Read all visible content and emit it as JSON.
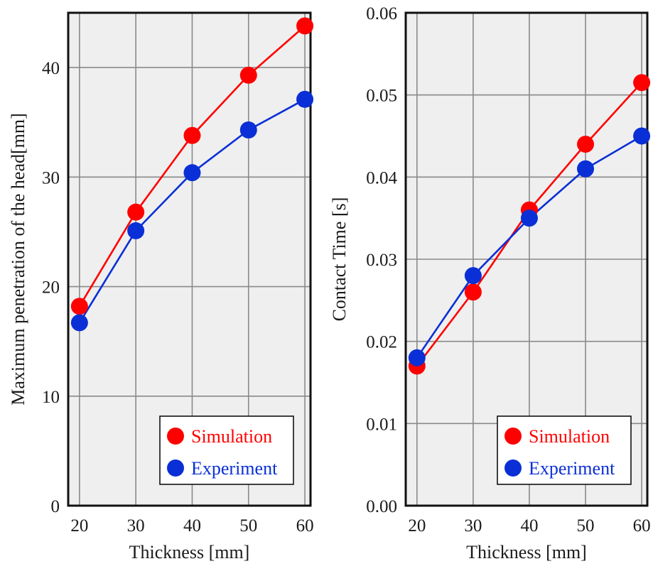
{
  "chart_data": [
    {
      "type": "line",
      "title": "",
      "xlabel": "Thickness [mm]",
      "ylabel": "Maximum penetration of the head[mm]",
      "x": [
        20,
        30,
        40,
        50,
        60
      ],
      "xlim": [
        18,
        61
      ],
      "ylim": [
        0,
        45
      ],
      "xticks": [
        "20",
        "30",
        "40",
        "50",
        "60"
      ],
      "yticks": [
        "0",
        "10",
        "20",
        "30",
        "40"
      ],
      "grid": true,
      "legend": "bottom-right",
      "series": [
        {
          "name": "Simulation",
          "color": "#ff0000",
          "values": [
            18.2,
            26.8,
            33.8,
            39.3,
            43.8
          ]
        },
        {
          "name": "Experiment",
          "color": "#0a2fd6",
          "values": [
            16.7,
            25.1,
            30.4,
            34.3,
            37.1
          ]
        }
      ]
    },
    {
      "type": "line",
      "title": "",
      "xlabel": "Thickness [mm]",
      "ylabel": "Contact Time [s]",
      "x": [
        20,
        30,
        40,
        50,
        60
      ],
      "xlim": [
        18,
        61
      ],
      "ylim": [
        0,
        0.06
      ],
      "xticks": [
        "20",
        "30",
        "40",
        "50",
        "60"
      ],
      "yticks": [
        "0.00",
        "0.01",
        "0.02",
        "0.03",
        "0.04",
        "0.05",
        "0.06"
      ],
      "grid": true,
      "legend": "bottom-right",
      "series": [
        {
          "name": "Simulation",
          "color": "#ff0000",
          "values": [
            0.017,
            0.026,
            0.036,
            0.044,
            0.0515
          ]
        },
        {
          "name": "Experiment",
          "color": "#0a2fd6",
          "values": [
            0.018,
            0.028,
            0.035,
            0.041,
            0.045
          ]
        }
      ]
    }
  ]
}
